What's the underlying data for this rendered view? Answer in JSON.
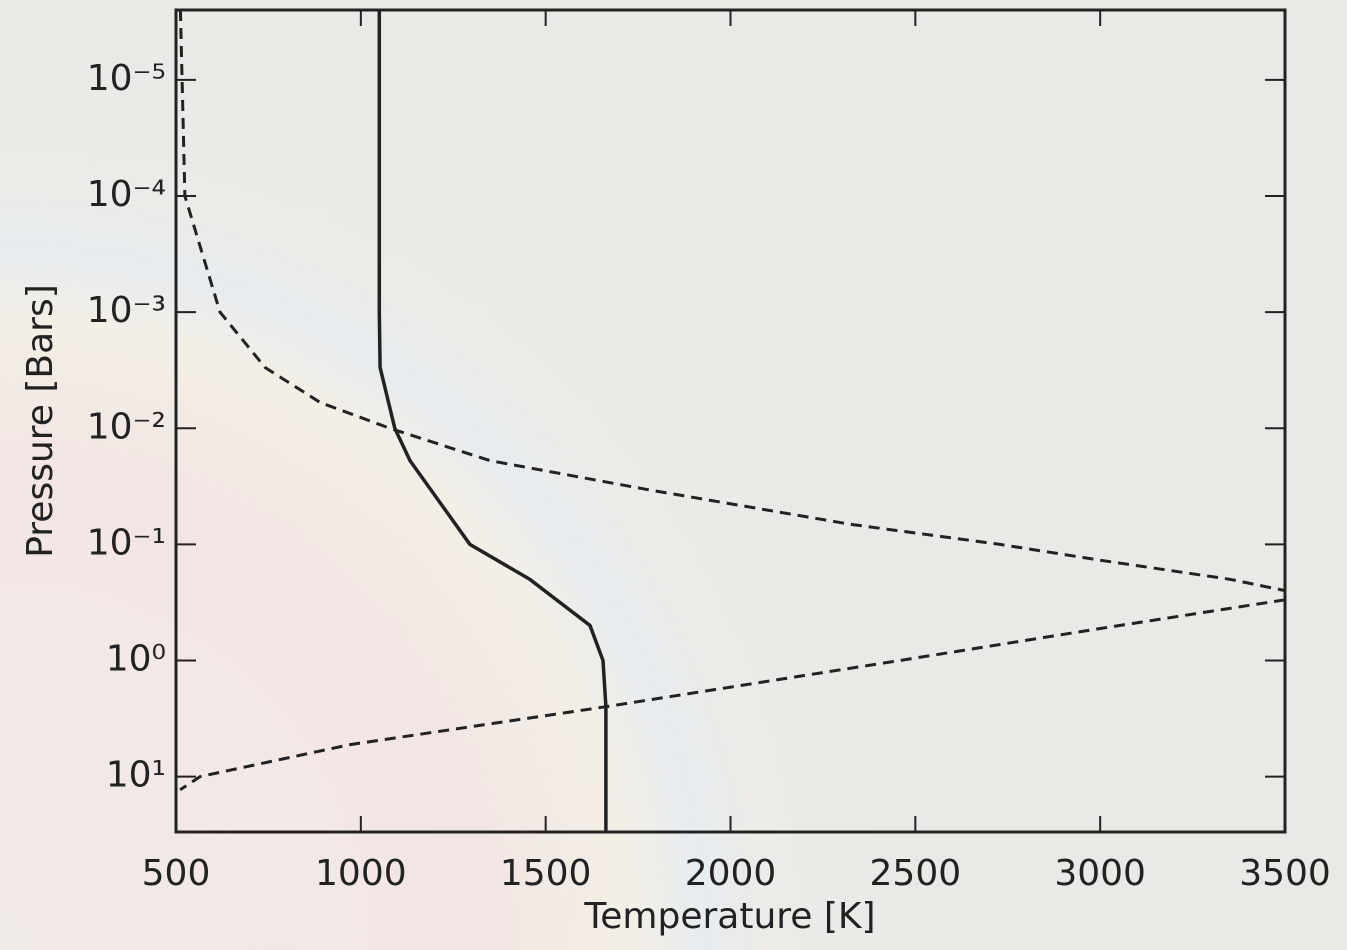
{
  "chart_data": {
    "type": "line",
    "x_label": "Temperature [K]",
    "y_label": "Pressure [Bars]",
    "xlim": [
      500,
      3500
    ],
    "xticks": [
      500,
      1000,
      1500,
      2000,
      2500,
      3000,
      3500
    ],
    "ylim": [
      2.5e-06,
      30
    ],
    "y_log": true,
    "y_inverted": true,
    "yticks": [
      {
        "value": 1e-05,
        "label": "10⁻⁵"
      },
      {
        "value": 0.0001,
        "label": "10⁻⁴"
      },
      {
        "value": 0.001,
        "label": "10⁻³"
      },
      {
        "value": 0.01,
        "label": "10⁻²"
      },
      {
        "value": 0.1,
        "label": "10⁻¹"
      },
      {
        "value": 1,
        "label": "10⁰"
      },
      {
        "value": 10,
        "label": "10¹"
      }
    ],
    "series": [
      {
        "color": "#222222",
        "style": "solid",
        "x": [
          1050,
          1050,
          1050,
          1052,
          1092,
          1133,
          1295,
          1457,
          1620,
          1655,
          1663,
          1663
        ],
        "values": [
          2.5e-06,
          0.0001,
          0.001,
          0.003,
          0.01,
          0.019,
          0.1,
          0.2,
          0.5,
          1,
          2.5,
          30
        ]
      },
      {
        "color": "#222222",
        "style": "dashed",
        "x": [
          512,
          524,
          619,
          741,
          890,
          1079,
          1349,
          1782,
          2323,
          2729,
          3000,
          3351,
          3500
        ],
        "values": [
          2.5e-06,
          0.0001,
          0.001,
          0.003,
          0.006,
          0.01,
          0.019,
          0.034,
          0.067,
          0.1,
          0.137,
          0.2,
          0.25
        ]
      },
      {
        "color": "#222222",
        "style": "dashed",
        "x": [
          3500,
          3000,
          2458,
          1663,
          971,
          565,
          511
        ],
        "values": [
          0.3,
          0.53,
          1,
          2.5,
          5.3,
          10,
          13
        ]
      }
    ]
  }
}
